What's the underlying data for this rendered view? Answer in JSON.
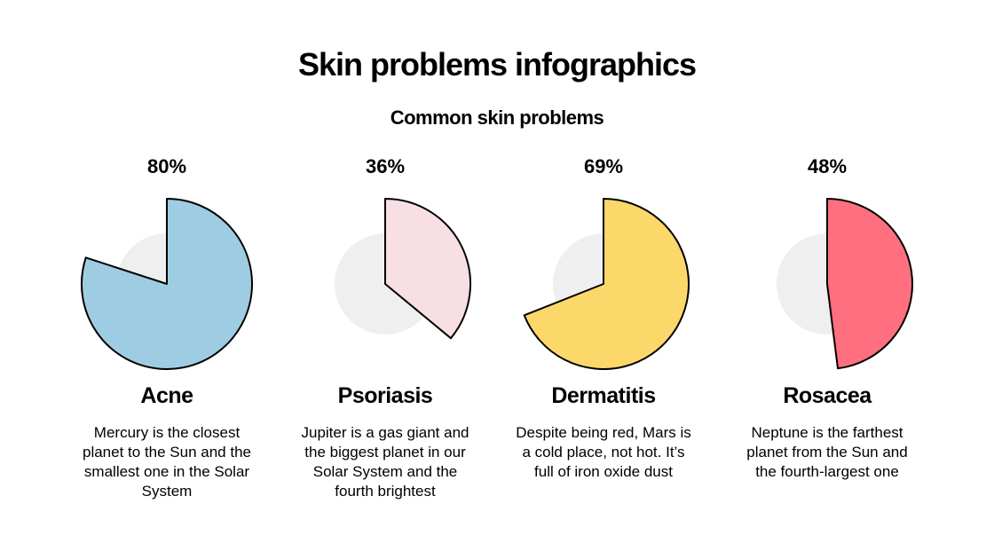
{
  "header": {
    "title": "Skin problems infographics",
    "subtitle": "Common skin problems"
  },
  "chart_data": [
    {
      "type": "pie",
      "title": "Acne",
      "values": [
        80
      ],
      "value_labels": [
        "80%"
      ],
      "color": "#9ecde3",
      "description": "Mercury is the closest planet to the Sun and the smallest one in the Solar System"
    },
    {
      "type": "pie",
      "title": "Psoriasis",
      "values": [
        36
      ],
      "value_labels": [
        "36%"
      ],
      "color": "#f8dfe3",
      "description": "Jupiter is a gas giant and the biggest planet in our Solar System and the fourth brightest"
    },
    {
      "type": "pie",
      "title": "Dermatitis",
      "values": [
        69
      ],
      "value_labels": [
        "69%"
      ],
      "color": "#fcd86a",
      "description": "Despite being red, Mars is a cold place, not hot. It’s full of iron oxide dust"
    },
    {
      "type": "pie",
      "title": "Rosacea",
      "values": [
        48
      ],
      "value_labels": [
        "48%"
      ],
      "color": "#ff6f7f",
      "description": "Neptune is the farthest planet from the Sun and the fourth-largest one"
    }
  ]
}
